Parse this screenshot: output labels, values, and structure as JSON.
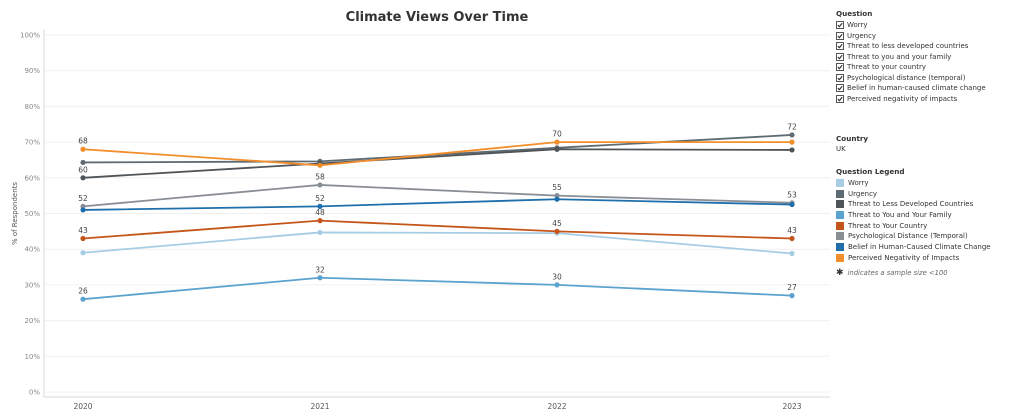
{
  "chart_data": {
    "type": "line",
    "title": "Climate Views Over Time",
    "ylabel": "% of Respondents",
    "xlabel": "",
    "ylim": [
      0,
      100
    ],
    "yticks": [
      "0%",
      "10%",
      "20%",
      "30%",
      "40%",
      "50%",
      "60%",
      "70%",
      "80%",
      "90%",
      "100%"
    ],
    "x": [
      "2020",
      "2021",
      "2022",
      "2023"
    ],
    "grid": true,
    "series": [
      {
        "name": "Worry",
        "color": "#a6cde4",
        "values": [
          39,
          44.7,
          44.5,
          38.8
        ],
        "labels": [
          "",
          "",
          "",
          ""
        ]
      },
      {
        "name": "Urgency",
        "color": "#5f6b73",
        "values": [
          64.3,
          64.6,
          68.4,
          72
        ],
        "labels": [
          "",
          "",
          "",
          "72"
        ]
      },
      {
        "name": "Threat to Less Developed Countries",
        "color": "#4f5458",
        "values": [
          60,
          64,
          68,
          67.8
        ],
        "labels": [
          "60",
          "",
          "",
          ""
        ]
      },
      {
        "name": "Threat to You and Your Family",
        "color": "#5ba3cf",
        "values": [
          26,
          32,
          30,
          27
        ],
        "labels": [
          "26",
          "32",
          "30",
          "27"
        ]
      },
      {
        "name": "Threat to Your Country",
        "color": "#c4561a",
        "values": [
          43,
          48,
          45,
          43
        ],
        "labels": [
          "43",
          "48",
          "45",
          "43"
        ]
      },
      {
        "name": "Psychological Distance (Temporal)",
        "color": "#8a8f96",
        "values": [
          52,
          58,
          55,
          53
        ],
        "labels": [
          "52",
          "58",
          "55",
          "53"
        ]
      },
      {
        "name": "Belief in Human-Caused Climate Change",
        "color": "#1f6fad",
        "values": [
          51,
          52,
          54,
          52.5
        ],
        "labels": [
          "",
          "52",
          "",
          ""
        ]
      },
      {
        "name": "Perceived Negativity of Impacts",
        "color": "#f28e2b",
        "values": [
          68,
          63.5,
          70,
          70
        ],
        "labels": [
          "68",
          "",
          "70",
          ""
        ]
      }
    ]
  },
  "filters": {
    "title": "Question",
    "items": [
      {
        "label": "Worry",
        "checked": true
      },
      {
        "label": "Urgency",
        "checked": true
      },
      {
        "label": "Threat to less developed countries",
        "checked": true
      },
      {
        "label": "Threat to you and your family",
        "checked": true
      },
      {
        "label": "Threat to your country",
        "checked": true
      },
      {
        "label": "Psychological distance (temporal)",
        "checked": true
      },
      {
        "label": "Belief in human-caused climate change",
        "checked": true
      },
      {
        "label": "Perceived negativity of impacts",
        "checked": true
      }
    ]
  },
  "country": {
    "title": "Country",
    "value": "UK"
  },
  "legend": {
    "title": "Question Legend",
    "items": [
      {
        "label": "Worry",
        "color": "#a6cde4"
      },
      {
        "label": "Urgency",
        "color": "#5f6b73"
      },
      {
        "label": "Threat to Less Developed Countries",
        "color": "#4f5458"
      },
      {
        "label": "Threat to You and Your Family",
        "color": "#5ba3cf"
      },
      {
        "label": "Threat to Your Country",
        "color": "#c4561a"
      },
      {
        "label": "Psychological Distance (Temporal)",
        "color": "#8a8f96"
      },
      {
        "label": "Belief in Human-Caused Climate Change",
        "color": "#1f6fad"
      },
      {
        "label": "Perceived Negativity of Impacts",
        "color": "#f28e2b"
      }
    ]
  },
  "footnote": {
    "symbol": "✱",
    "text": "indicates a sample size <100"
  }
}
